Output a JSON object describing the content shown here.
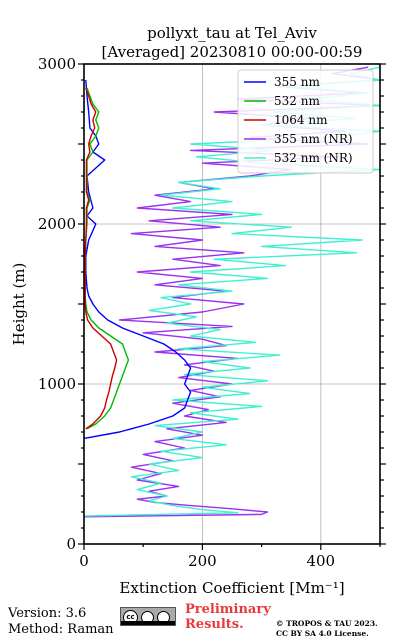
{
  "chart_data": {
    "type": "line",
    "title_line1": "pollyxt_tau at Tel_Aviv",
    "title_line2": "[Averaged] 20230810 00:00-00:59",
    "xlabel": "Extinction Coefficient [Mm⁻¹]",
    "ylabel": "Height (m)",
    "xlim": [
      0,
      500
    ],
    "ylim": [
      0,
      3000
    ],
    "xticks": [
      "0",
      "200",
      "400"
    ],
    "yticks": [
      "0",
      "1000",
      "2000",
      "3000"
    ],
    "grid": true,
    "legend_position": "top-right",
    "series": [
      {
        "name": "355 nm",
        "color": "#0000ff",
        "y": [
          660,
          700,
          750,
          800,
          850,
          900,
          950,
          1000,
          1050,
          1100,
          1150,
          1200,
          1250,
          1300,
          1350,
          1400,
          1450,
          1500,
          1550,
          1600,
          1700,
          1800,
          1900,
          2000,
          2050,
          2100,
          2200,
          2300,
          2400,
          2450,
          2500,
          2550,
          2600,
          2700,
          2800,
          2900
        ],
        "x": [
          0,
          60,
          110,
          150,
          170,
          175,
          180,
          170,
          175,
          180,
          170,
          155,
          135,
          100,
          65,
          40,
          25,
          15,
          8,
          5,
          3,
          3,
          8,
          20,
          5,
          15,
          8,
          5,
          35,
          15,
          25,
          20,
          10,
          8,
          5,
          3
        ]
      },
      {
        "name": "532 nm",
        "color": "#00bb00",
        "y": [
          720,
          750,
          800,
          850,
          900,
          950,
          1000,
          1050,
          1100,
          1150,
          1200,
          1250,
          1300,
          1350,
          1400,
          1450,
          1500,
          1550,
          1600,
          1700,
          1800,
          1900,
          2000,
          2100,
          2150,
          2200,
          2300,
          2400,
          2450,
          2500,
          2550,
          2600,
          2650,
          2700,
          2750,
          2800,
          2850
        ],
        "x": [
          5,
          20,
          35,
          45,
          50,
          55,
          60,
          65,
          70,
          75,
          70,
          65,
          45,
          25,
          12,
          5,
          3,
          2,
          2,
          2,
          2,
          3,
          5,
          5,
          10,
          5,
          5,
          5,
          15,
          10,
          20,
          25,
          20,
          25,
          15,
          10,
          5
        ]
      },
      {
        "name": "1064 nm",
        "color": "#cc0000",
        "y": [
          720,
          750,
          800,
          850,
          900,
          950,
          1000,
          1050,
          1100,
          1150,
          1200,
          1250,
          1300,
          1350,
          1400,
          1450,
          1500,
          1550,
          1600,
          1700,
          1800,
          1900,
          2000,
          2100,
          2150,
          2200,
          2300,
          2400,
          2450,
          2500,
          2550,
          2600,
          2650,
          2700,
          2750,
          2800,
          2850
        ],
        "x": [
          3,
          15,
          28,
          35,
          38,
          42,
          45,
          48,
          52,
          55,
          50,
          45,
          30,
          15,
          6,
          3,
          2,
          2,
          2,
          2,
          2,
          3,
          4,
          4,
          8,
          4,
          4,
          4,
          10,
          8,
          12,
          18,
          15,
          20,
          12,
          8,
          3
        ]
      },
      {
        "name": "355 nm (NR)",
        "color": "#9a30f0",
        "y": [
          170,
          185,
          200,
          220,
          240,
          260,
          280,
          300,
          330,
          360,
          400,
          440,
          480,
          520,
          560,
          600,
          640,
          680,
          720,
          760,
          800,
          840,
          880,
          920,
          960,
          1000,
          1040,
          1080,
          1120,
          1160,
          1200,
          1240,
          1280,
          1320,
          1360,
          1400,
          1450,
          1500,
          1540,
          1580,
          1620,
          1660,
          1700,
          1740,
          1780,
          1820,
          1860,
          1900,
          1940,
          1980,
          2020,
          2060,
          2100,
          2140,
          2180,
          2220,
          2260,
          2300,
          2340,
          2380,
          2420,
          2460,
          2500,
          2540,
          2580,
          2620,
          2660,
          2700,
          2740,
          2780,
          2820,
          2860,
          2900,
          2940,
          2980
        ],
        "x": [
          0,
          300,
          310,
          250,
          180,
          120,
          90,
          140,
          110,
          160,
          90,
          130,
          80,
          150,
          100,
          170,
          120,
          200,
          140,
          240,
          170,
          210,
          150,
          230,
          180,
          250,
          160,
          220,
          170,
          260,
          120,
          240,
          200,
          100,
          250,
          60,
          200,
          270,
          150,
          240,
          120,
          200,
          90,
          230,
          150,
          270,
          120,
          200,
          80,
          230,
          110,
          250,
          90,
          180,
          120,
          220,
          160,
          280,
          350,
          200,
          430,
          180,
          480,
          280,
          440,
          300,
          380,
          220,
          500,
          260,
          470,
          330,
          500,
          420,
          480
        ]
      },
      {
        "name": "532 nm (NR)",
        "color": "#40f0d0",
        "y": [
          175,
          195,
          215,
          240,
          270,
          300,
          340,
          380,
          420,
          460,
          500,
          540,
          580,
          620,
          660,
          700,
          740,
          780,
          820,
          860,
          900,
          940,
          980,
          1020,
          1060,
          1100,
          1140,
          1180,
          1220,
          1260,
          1300,
          1340,
          1380,
          1420,
          1460,
          1500,
          1540,
          1580,
          1620,
          1660,
          1700,
          1740,
          1780,
          1820,
          1860,
          1900,
          1940,
          1980,
          2020,
          2060,
          2100,
          2140,
          2180,
          2220,
          2260,
          2300,
          2340,
          2380,
          2420,
          2460,
          2500,
          2540,
          2580,
          2620,
          2660,
          2700,
          2740,
          2780,
          2820,
          2860,
          2900,
          2940,
          2980
        ],
        "x": [
          0,
          260,
          200,
          150,
          110,
          140,
          90,
          130,
          80,
          160,
          110,
          200,
          130,
          240,
          150,
          200,
          120,
          260,
          180,
          300,
          150,
          280,
          200,
          310,
          170,
          280,
          200,
          330,
          160,
          290,
          180,
          230,
          140,
          190,
          110,
          180,
          130,
          250,
          160,
          310,
          180,
          340,
          220,
          460,
          300,
          470,
          250,
          350,
          180,
          300,
          150,
          250,
          130,
          230,
          160,
          300,
          500,
          300,
          190,
          320,
          180,
          420,
          500,
          300,
          460,
          320,
          500,
          380,
          480,
          340,
          500,
          450,
          500
        ]
      }
    ]
  },
  "footer": {
    "version": "Version: 3.6",
    "method": "Method: Raman",
    "cc_label": "cc",
    "preliminary_line1": "Preliminary",
    "preliminary_line2": "Results.",
    "copyright_line1": "© TROPOS & TAU 2023.",
    "copyright_line2": "CC BY SA 4.0 License."
  }
}
